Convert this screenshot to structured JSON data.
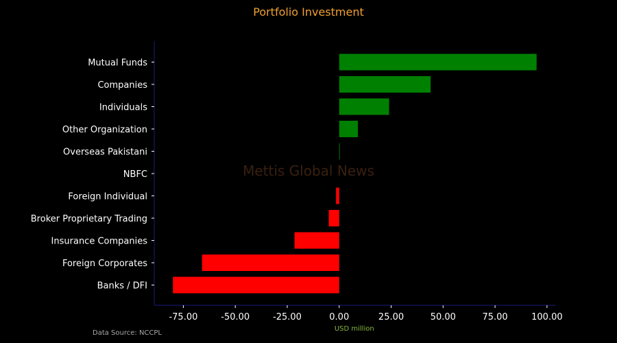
{
  "chart_data": {
    "type": "bar",
    "orientation": "horizontal",
    "title": "Portfolio Investment",
    "xlabel": "USD million",
    "ylabel": "",
    "categories": [
      "Mutual Funds",
      "Companies",
      "Individuals",
      "Other Organization",
      "Overseas Pakistani",
      "NBFC",
      "Foreign Individual",
      "Broker Proprietary Trading",
      "Insurance Companies",
      "Foreign Corporates",
      "Banks / DFI"
    ],
    "values": [
      95.0,
      44.0,
      24.0,
      9.0,
      0.3,
      0.0,
      -1.5,
      -5.0,
      -21.5,
      -66.0,
      -80.0
    ],
    "xlim": [
      -89,
      104
    ],
    "xticks": [
      -75,
      -50,
      -25,
      0,
      25,
      50,
      75,
      100
    ],
    "xtick_labels": [
      "-75.00",
      "-50.00",
      "-25.00",
      "0.00",
      "25.00",
      "50.00",
      "75.00",
      "100.00"
    ],
    "grid": false,
    "legend": "none",
    "watermark": "Mettis Global News",
    "source_note": "Data Source: NCCPL",
    "colors": {
      "positive": "#008000",
      "negative": "#ff0000",
      "title": "#f0a030",
      "xlabel": "#8ab840",
      "axis": "#1a1a80",
      "text": "#ffffff",
      "source": "#aaaaaa",
      "watermark": "#3a2010",
      "background": "#000000"
    }
  }
}
